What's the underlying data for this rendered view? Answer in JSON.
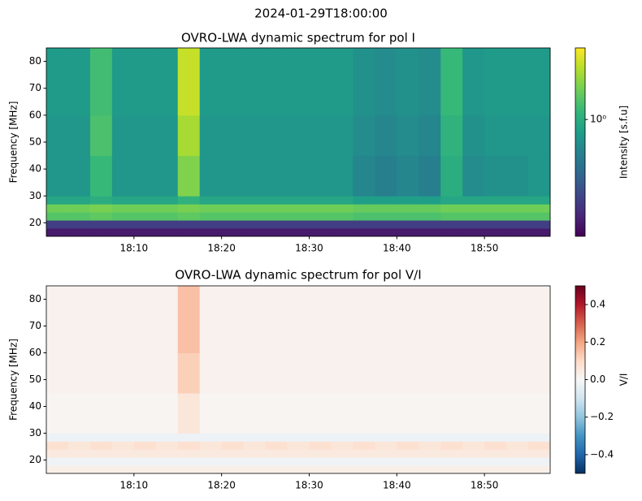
{
  "title": "2024-01-29T18:00:00",
  "chart_data": [
    {
      "type": "heatmap",
      "title": "OVRO-LWA dynamic spectrum for pol I",
      "ylabel": "Frequency [MHz]",
      "colorbar_label": "Intensity [s.f.u]",
      "colormap": "viridis",
      "color_scale": "log",
      "clim": [
        0.1,
        4.1
      ],
      "cticks": [
        {
          "value": 1,
          "label": "10⁰"
        }
      ],
      "xlim": [
        "18:00:00",
        "18:57:30"
      ],
      "xticks": [
        "18:10",
        "18:20",
        "18:30",
        "18:40",
        "18:50"
      ],
      "ylim": [
        15,
        85
      ],
      "yticks": [
        20,
        30,
        40,
        50,
        60,
        70,
        80
      ],
      "xbins": [
        "18:00:00",
        "18:02:30",
        "18:05:00",
        "18:07:30",
        "18:10:00",
        "18:12:30",
        "18:15:00",
        "18:17:30",
        "18:20:00",
        "18:22:30",
        "18:25:00",
        "18:27:30",
        "18:30:00",
        "18:32:30",
        "18:35:00",
        "18:37:30",
        "18:40:00",
        "18:42:30",
        "18:45:00",
        "18:47:30",
        "18:50:00",
        "18:52:30",
        "18:55:00",
        "18:57:30"
      ],
      "ybins": [
        15,
        18,
        21,
        24,
        27,
        30,
        45,
        60,
        85
      ],
      "z": [
        [
          0.13,
          0.13,
          0.13,
          0.13,
          0.13,
          0.13,
          0.13,
          0.13,
          0.13,
          0.13,
          0.13,
          0.13,
          0.13,
          0.13,
          0.13,
          0.13,
          0.13,
          0.13,
          0.13,
          0.13,
          0.13,
          0.13,
          0.13
        ],
        [
          0.2,
          0.2,
          0.2,
          0.2,
          0.2,
          0.2,
          0.2,
          0.2,
          0.2,
          0.2,
          0.2,
          0.2,
          0.2,
          0.2,
          0.2,
          0.2,
          0.2,
          0.2,
          0.2,
          0.2,
          0.2,
          0.2,
          0.2
        ],
        [
          1.5,
          1.5,
          1.6,
          1.5,
          1.5,
          1.5,
          1.6,
          1.5,
          1.5,
          1.5,
          1.5,
          1.5,
          1.5,
          1.5,
          1.4,
          1.4,
          1.4,
          1.4,
          1.5,
          1.5,
          1.5,
          1.5,
          1.5
        ],
        [
          1.8,
          1.8,
          1.9,
          1.8,
          1.8,
          1.8,
          1.9,
          1.8,
          1.8,
          1.8,
          1.8,
          1.8,
          1.8,
          1.8,
          1.7,
          1.7,
          1.7,
          1.7,
          1.8,
          1.8,
          1.8,
          1.8,
          1.8
        ],
        [
          0.9,
          0.9,
          1.0,
          0.9,
          0.9,
          0.9,
          1.1,
          0.9,
          0.9,
          0.9,
          0.9,
          0.9,
          0.9,
          0.9,
          0.8,
          0.8,
          0.8,
          0.8,
          0.9,
          0.9,
          0.9,
          0.9,
          0.9
        ],
        [
          0.7,
          0.7,
          1.2,
          0.7,
          0.7,
          0.7,
          2.0,
          0.7,
          0.7,
          0.7,
          0.7,
          0.7,
          0.7,
          0.7,
          0.55,
          0.5,
          0.55,
          0.5,
          1.0,
          0.6,
          0.65,
          0.65,
          0.7
        ],
        [
          0.7,
          0.7,
          1.4,
          0.7,
          0.7,
          0.7,
          2.5,
          0.7,
          0.7,
          0.7,
          0.7,
          0.7,
          0.7,
          0.7,
          0.6,
          0.55,
          0.6,
          0.55,
          1.1,
          0.65,
          0.7,
          0.7,
          0.7
        ],
        [
          0.75,
          0.75,
          1.3,
          0.75,
          0.75,
          0.75,
          3.0,
          0.75,
          0.75,
          0.75,
          0.75,
          0.75,
          0.75,
          0.75,
          0.65,
          0.6,
          0.65,
          0.6,
          1.2,
          0.7,
          0.75,
          0.75,
          0.75
        ]
      ]
    },
    {
      "type": "heatmap",
      "title": "OVRO-LWA dynamic spectrum for pol V/I",
      "ylabel": "Frequency [MHz]",
      "colorbar_label": "V/I",
      "colormap": "RdBu_r",
      "color_scale": "linear",
      "clim": [
        -0.5,
        0.5
      ],
      "cticks": [
        {
          "value": -0.4,
          "label": "−0.4"
        },
        {
          "value": -0.2,
          "label": "−0.2"
        },
        {
          "value": 0,
          "label": "0.0"
        },
        0.2,
        0.4
      ],
      "xlim": [
        "18:00:00",
        "18:57:30"
      ],
      "xticks": [
        "18:10",
        "18:20",
        "18:30",
        "18:40",
        "18:50"
      ],
      "ylim": [
        15,
        85
      ],
      "yticks": [
        20,
        30,
        40,
        50,
        60,
        70,
        80
      ],
      "xbins": [
        "18:00:00",
        "18:02:30",
        "18:05:00",
        "18:07:30",
        "18:10:00",
        "18:12:30",
        "18:15:00",
        "18:17:30",
        "18:20:00",
        "18:22:30",
        "18:25:00",
        "18:27:30",
        "18:30:00",
        "18:32:30",
        "18:35:00",
        "18:37:30",
        "18:40:00",
        "18:42:30",
        "18:45:00",
        "18:47:30",
        "18:50:00",
        "18:52:30",
        "18:55:00",
        "18:57:30"
      ],
      "ybins": [
        15,
        18,
        21,
        24,
        27,
        30,
        45,
        60,
        85
      ],
      "z": [
        [
          0.03,
          0.03,
          0.03,
          0.03,
          0.03,
          0.03,
          0.03,
          0.03,
          0.03,
          0.03,
          0.03,
          0.03,
          0.03,
          0.03,
          0.03,
          0.03,
          0.03,
          0.03,
          0.03,
          0.03,
          0.03,
          0.03,
          0.03
        ],
        [
          -0.02,
          -0.02,
          -0.02,
          -0.02,
          -0.02,
          -0.02,
          -0.02,
          -0.02,
          -0.02,
          -0.02,
          -0.02,
          -0.02,
          -0.02,
          -0.02,
          -0.02,
          -0.02,
          -0.02,
          -0.02,
          -0.02,
          -0.02,
          -0.02,
          -0.02,
          -0.02
        ],
        [
          0.05,
          0.05,
          0.05,
          0.05,
          0.05,
          0.05,
          0.05,
          0.05,
          0.05,
          0.05,
          0.05,
          0.05,
          0.05,
          0.05,
          0.05,
          0.05,
          0.05,
          0.05,
          0.05,
          0.05,
          0.05,
          0.05,
          0.05
        ],
        [
          0.08,
          0.06,
          0.08,
          0.06,
          0.08,
          0.06,
          0.08,
          0.06,
          0.08,
          0.06,
          0.08,
          0.06,
          0.08,
          0.06,
          0.08,
          0.06,
          0.08,
          0.06,
          0.08,
          0.06,
          0.08,
          0.06,
          0.08
        ],
        [
          -0.03,
          -0.03,
          -0.03,
          -0.03,
          -0.03,
          -0.03,
          -0.03,
          -0.03,
          -0.03,
          -0.03,
          -0.03,
          -0.03,
          -0.03,
          -0.03,
          -0.03,
          -0.03,
          -0.03,
          -0.03,
          -0.03,
          -0.03,
          -0.03,
          -0.03,
          -0.03
        ],
        [
          0.01,
          0.01,
          0.01,
          0.01,
          0.01,
          0.01,
          0.06,
          0.01,
          0.01,
          0.01,
          0.01,
          0.01,
          0.01,
          0.01,
          0.01,
          0.01,
          0.01,
          0.01,
          0.01,
          0.01,
          0.01,
          0.01,
          0.01
        ],
        [
          0.02,
          0.02,
          0.02,
          0.02,
          0.02,
          0.02,
          0.12,
          0.02,
          0.02,
          0.02,
          0.02,
          0.02,
          0.02,
          0.02,
          0.02,
          0.02,
          0.02,
          0.02,
          0.02,
          0.02,
          0.02,
          0.02,
          0.02
        ],
        [
          0.02,
          0.02,
          0.02,
          0.02,
          0.02,
          0.02,
          0.15,
          0.02,
          0.02,
          0.02,
          0.02,
          0.02,
          0.02,
          0.02,
          0.02,
          0.02,
          0.02,
          0.02,
          0.02,
          0.02,
          0.02,
          0.02,
          0.02
        ]
      ]
    }
  ]
}
